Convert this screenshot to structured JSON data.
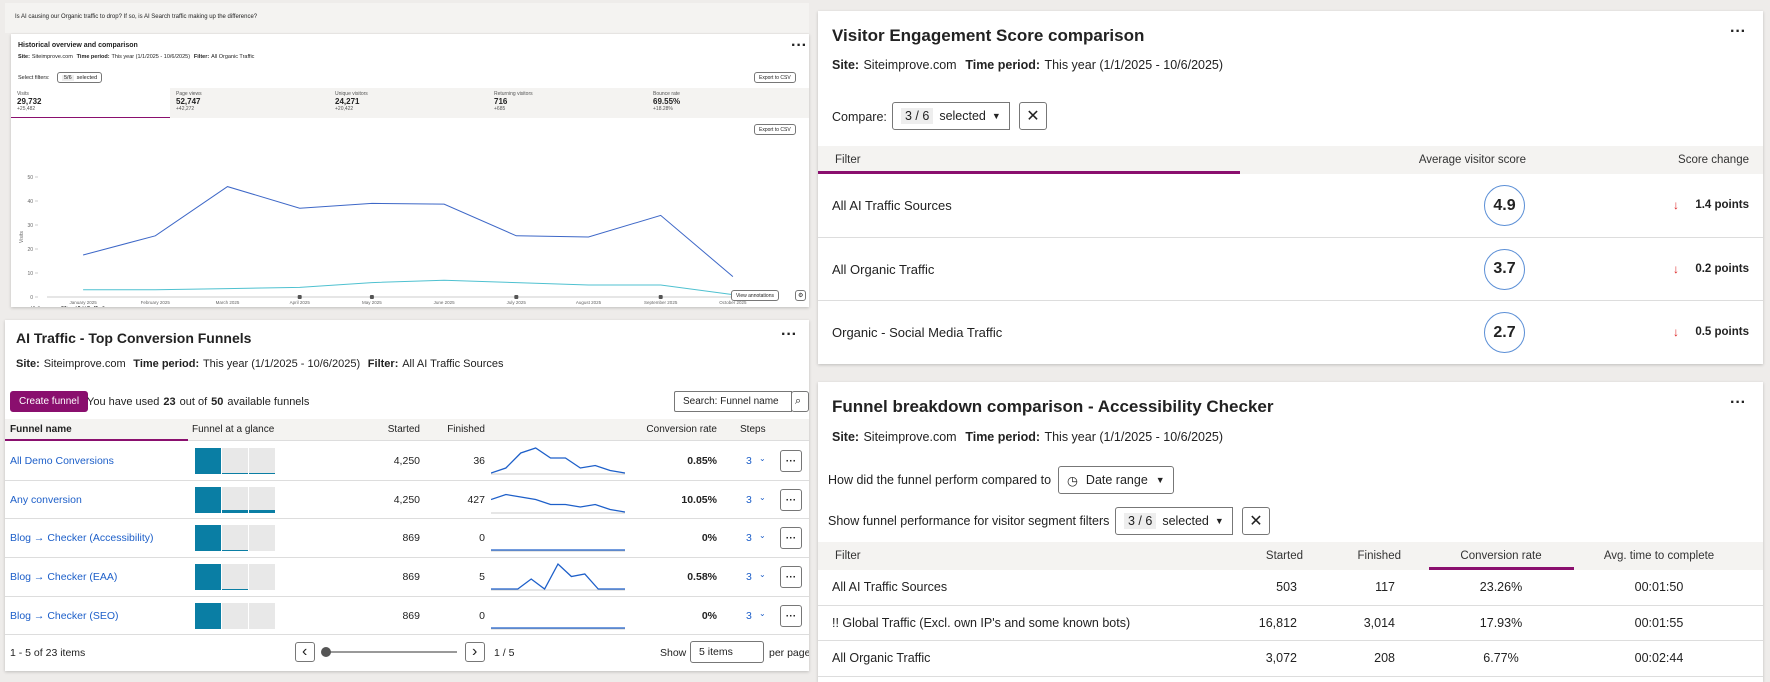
{
  "historical": {
    "question": "Is AI causing our Organic traffic to drop? If so, is AI Search traffic making up the difference?",
    "title": "Historical overview and comparison",
    "site_label": "Site:",
    "site": "Siteimprove.com",
    "period_label": "Time period:",
    "period": "This year (1/1/2025 - 10/6/2025)",
    "filter_label": "Filter:",
    "filter": "All Organic Traffic",
    "select_filters": "Select filters:",
    "selected_count": "5/6",
    "selected_text": "selected",
    "export": "Export to CSV",
    "metrics": [
      {
        "label": "Visits",
        "value": "29,732",
        "change": "+25,482"
      },
      {
        "label": "Page views",
        "value": "52,747",
        "change": "+42,272"
      },
      {
        "label": "Unique visitors",
        "value": "24,271",
        "change": "+20,422"
      },
      {
        "label": "Returning visitors",
        "value": "716",
        "change": "+685"
      },
      {
        "label": "Bounce rate",
        "value": "69.55%",
        "change": "+18.28%"
      }
    ],
    "chart": {
      "type": "line",
      "y_label": "Visits",
      "categories": [
        "January 2025",
        "February 2025",
        "March 2025",
        "April 2025",
        "May 2025",
        "June 2025",
        "July 2025",
        "August 2025",
        "September 2025",
        "October 2025"
      ],
      "ylim": [
        0,
        50
      ],
      "yticks": [
        0,
        10,
        20,
        30,
        40,
        50
      ],
      "series": [
        {
          "name": "Visits",
          "color": "#3d67c7",
          "values": [
            17.5,
            25.5,
            46,
            37,
            39,
            38.7,
            25.5,
            25,
            34,
            8.5
          ]
        },
        {
          "name": "Filter: All AI Traffic Sources",
          "color": "#4fc1d0",
          "values": [
            3,
            3,
            3.5,
            4,
            6,
            7,
            6,
            5,
            5,
            1
          ]
        }
      ]
    },
    "view_annotations": "View annotations"
  },
  "funnels": {
    "title": "AI Traffic - Top Conversion Funnels",
    "site_label": "Site:",
    "site": "Siteimprove.com",
    "period_label": "Time period:",
    "period": "This year (1/1/2025 - 10/6/2025)",
    "filter_label": "Filter:",
    "filter": "All AI Traffic Sources",
    "create": "Create funnel",
    "used_pre": "You have used",
    "used": "23",
    "used_mid": "out of",
    "total": "50",
    "used_post": "available funnels",
    "search": "Search: Funnel name",
    "headers": [
      "Funnel name",
      "Funnel at a glance",
      "Started",
      "Finished",
      "Conversion rate",
      "Steps"
    ],
    "rows": [
      {
        "name": "All Demo Conversions",
        "glance": [
          100,
          4,
          4
        ],
        "started": "4,250",
        "finished": "36",
        "spark": [
          0,
          2,
          8,
          10,
          6,
          6,
          2,
          3,
          1,
          0
        ],
        "rate": "0.85%",
        "steps": "3"
      },
      {
        "name": "Any conversion",
        "glance": [
          100,
          10,
          10
        ],
        "started": "4,250",
        "finished": "427",
        "spark": [
          5,
          7,
          6,
          5,
          3,
          3,
          2,
          3,
          1,
          0
        ],
        "rate": "10.05%",
        "steps": "3"
      },
      {
        "name": "Blog → Checker (Accessibility)",
        "glance": [
          100,
          5,
          0
        ],
        "started": "869",
        "finished": "0",
        "spark": [
          0,
          0,
          0,
          0,
          0,
          0,
          0,
          0,
          0,
          0
        ],
        "rate": "0%",
        "steps": "3"
      },
      {
        "name": "Blog → Checker (EAA)",
        "glance": [
          100,
          5,
          0
        ],
        "started": "869",
        "finished": "5",
        "spark": [
          0,
          0,
          0,
          4,
          0,
          10,
          5,
          6,
          0,
          0,
          0
        ],
        "rate": "0.58%",
        "steps": "3"
      },
      {
        "name": "Blog → Checker (SEO)",
        "glance": [
          100,
          0,
          0
        ],
        "started": "869",
        "finished": "0",
        "spark": [
          0,
          0,
          0,
          0,
          0,
          0,
          0,
          0,
          0,
          0
        ],
        "rate": "0%",
        "steps": "3"
      }
    ],
    "range": "1 - 5 of 23 items",
    "page": "1 / 5",
    "show": "Show",
    "per_value": "5 items",
    "per_page": "per page"
  },
  "engagement": {
    "title": "Visitor Engagement Score comparison",
    "site_label": "Site:",
    "site": "Siteimprove.com",
    "period_label": "Time period:",
    "period": "This year (1/1/2025 - 10/6/2025)",
    "compare": "Compare:",
    "selected_count": "3 / 6",
    "selected_text": "selected",
    "headers": [
      "Filter",
      "Average visitor score",
      "Score change"
    ],
    "rows": [
      {
        "name": "All AI Traffic Sources",
        "score": "4.9",
        "change": "1.4 points"
      },
      {
        "name": "All Organic Traffic",
        "score": "3.7",
        "change": "0.2 points"
      },
      {
        "name": "Organic - Social Media Traffic",
        "score": "2.7",
        "change": "0.5 points"
      }
    ]
  },
  "breakdown": {
    "title": "Funnel breakdown comparison - Accessibility Checker",
    "site_label": "Site:",
    "site": "Siteimprove.com",
    "period_label": "Time period:",
    "period": "This year (1/1/2025 - 10/6/2025)",
    "compare_q": "How did the funnel perform compared to",
    "date_range": "Date range",
    "segment_q": "Show funnel performance for visitor segment filters",
    "selected_count": "3 / 6",
    "selected_text": "selected",
    "headers": [
      "Filter",
      "Started",
      "Finished",
      "Conversion rate",
      "Avg. time to complete"
    ],
    "rows": [
      [
        "All AI Traffic Sources",
        "503",
        "117",
        "23.26%",
        "00:01:50"
      ],
      [
        "!! Global Traffic (Excl. own IP's and some known bots)",
        "16,812",
        "3,014",
        "17.93%",
        "00:01:55"
      ],
      [
        "All Organic Traffic",
        "3,072",
        "208",
        "6.77%",
        "00:02:44"
      ]
    ]
  }
}
